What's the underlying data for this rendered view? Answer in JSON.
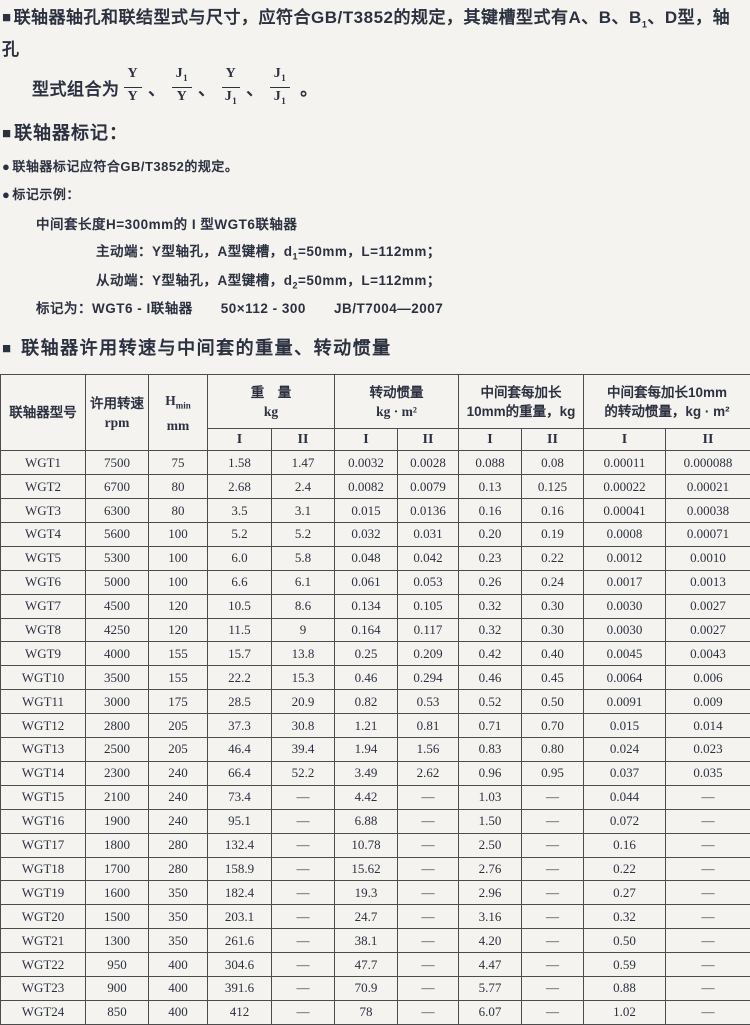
{
  "icons": {
    "square_bullet": "■",
    "dot_bullet": "●"
  },
  "intro": {
    "l1a": "联轴器轴孔和联结型式与尺寸，应符合GB/T3852的规定，其键槽型式有A、B、B",
    "l1sub": "1",
    "l1b": "、D型，轴孔",
    "l2prefix": "型式组合为",
    "separator": "、",
    "period": "。",
    "fracs": [
      {
        "top": "Y",
        "topSub": "",
        "bot": "Y",
        "botSub": ""
      },
      {
        "top": "J",
        "topSub": "1",
        "bot": "Y",
        "botSub": ""
      },
      {
        "top": "Y",
        "topSub": "",
        "bot": "J",
        "botSub": "1"
      },
      {
        "top": "J",
        "topSub": "1",
        "bot": "J",
        "botSub": "1"
      }
    ]
  },
  "marking": {
    "heading": "联轴器标记：",
    "bullet1": "联轴器标记应符合GB/T3852的规定。",
    "bullet2": "标记示例：",
    "example_line1": "中间套长度H=300mm的 I 型WGT6联轴器",
    "ex2a": "主动端：Y型轴孔，A型键槽，d",
    "ex2sub": "1",
    "ex2b": "=50mm，L=112mm；",
    "ex3a": "从动端：Y型轴孔，A型键槽，d",
    "ex3sub": "2",
    "ex3b": "=50mm，L=112mm；",
    "example_line4": "标记为：WGT6 - I联轴器　　50×112 - 300　　JB/T7004—2007"
  },
  "table_section": {
    "heading": "联轴器许用转速与中间套的重量、转动惯量"
  },
  "table": {
    "headers": {
      "model": "联轴器型号",
      "speed_line1": "许用转速",
      "speed_line2": "rpm",
      "h_main": "H",
      "h_sub": "min",
      "h_unit": "mm",
      "weight_line1": "重　量",
      "weight_line2": "kg",
      "inertia_line1": "转动惯量",
      "inertia_line2": "kg · m²",
      "ext_weight_line1": "中间套每加长",
      "ext_weight_line2": "10mm的重量，kg",
      "ext_inertia_line1": "中间套每加长10mm",
      "ext_inertia_line2": "的转动惯量，kg · m²",
      "col_I": "I",
      "col_II": "II"
    },
    "rows": [
      [
        "WGT1",
        "7500",
        "75",
        "1.58",
        "1.47",
        "0.0032",
        "0.0028",
        "0.088",
        "0.08",
        "0.00011",
        "0.000088"
      ],
      [
        "WGT2",
        "6700",
        "80",
        "2.68",
        "2.4",
        "0.0082",
        "0.0079",
        "0.13",
        "0.125",
        "0.00022",
        "0.00021"
      ],
      [
        "WGT3",
        "6300",
        "80",
        "3.5",
        "3.1",
        "0.015",
        "0.0136",
        "0.16",
        "0.16",
        "0.00041",
        "0.00038"
      ],
      [
        "WGT4",
        "5600",
        "100",
        "5.2",
        "5.2",
        "0.032",
        "0.031",
        "0.20",
        "0.19",
        "0.0008",
        "0.00071"
      ],
      [
        "WGT5",
        "5300",
        "100",
        "6.0",
        "5.8",
        "0.048",
        "0.042",
        "0.23",
        "0.22",
        "0.0012",
        "0.0010"
      ],
      [
        "WGT6",
        "5000",
        "100",
        "6.6",
        "6.1",
        "0.061",
        "0.053",
        "0.26",
        "0.24",
        "0.0017",
        "0.0013"
      ],
      [
        "WGT7",
        "4500",
        "120",
        "10.5",
        "8.6",
        "0.134",
        "0.105",
        "0.32",
        "0.30",
        "0.0030",
        "0.0027"
      ],
      [
        "WGT8",
        "4250",
        "120",
        "11.5",
        "9",
        "0.164",
        "0.117",
        "0.32",
        "0.30",
        "0.0030",
        "0.0027"
      ],
      [
        "WGT9",
        "4000",
        "155",
        "15.7",
        "13.8",
        "0.25",
        "0.209",
        "0.42",
        "0.40",
        "0.0045",
        "0.0043"
      ],
      [
        "WGT10",
        "3500",
        "155",
        "22.2",
        "15.3",
        "0.46",
        "0.294",
        "0.46",
        "0.45",
        "0.0064",
        "0.006"
      ],
      [
        "WGT11",
        "3000",
        "175",
        "28.5",
        "20.9",
        "0.82",
        "0.53",
        "0.52",
        "0.50",
        "0.0091",
        "0.009"
      ],
      [
        "WGT12",
        "2800",
        "205",
        "37.3",
        "30.8",
        "1.21",
        "0.81",
        "0.71",
        "0.70",
        "0.015",
        "0.014"
      ],
      [
        "WGT13",
        "2500",
        "205",
        "46.4",
        "39.4",
        "1.94",
        "1.56",
        "0.83",
        "0.80",
        "0.024",
        "0.023"
      ],
      [
        "WGT14",
        "2300",
        "240",
        "66.4",
        "52.2",
        "3.49",
        "2.62",
        "0.96",
        "0.95",
        "0.037",
        "0.035"
      ],
      [
        "WGT15",
        "2100",
        "240",
        "73.4",
        "—",
        "4.42",
        "—",
        "1.03",
        "—",
        "0.044",
        "—"
      ],
      [
        "WGT16",
        "1900",
        "240",
        "95.1",
        "—",
        "6.88",
        "—",
        "1.50",
        "—",
        "0.072",
        "—"
      ],
      [
        "WGT17",
        "1800",
        "280",
        "132.4",
        "—",
        "10.78",
        "—",
        "2.50",
        "—",
        "0.16",
        "—"
      ],
      [
        "WGT18",
        "1700",
        "280",
        "158.9",
        "—",
        "15.62",
        "—",
        "2.76",
        "—",
        "0.22",
        "—"
      ],
      [
        "WGT19",
        "1600",
        "350",
        "182.4",
        "—",
        "19.3",
        "—",
        "2.96",
        "—",
        "0.27",
        "—"
      ],
      [
        "WGT20",
        "1500",
        "350",
        "203.1",
        "—",
        "24.7",
        "—",
        "3.16",
        "—",
        "0.32",
        "—"
      ],
      [
        "WGT21",
        "1300",
        "350",
        "261.6",
        "—",
        "38.1",
        "—",
        "4.20",
        "—",
        "0.50",
        "—"
      ],
      [
        "WGT22",
        "950",
        "400",
        "304.6",
        "—",
        "47.7",
        "—",
        "4.47",
        "—",
        "0.59",
        "—"
      ],
      [
        "WGT23",
        "900",
        "400",
        "391.6",
        "—",
        "70.9",
        "—",
        "5.77",
        "—",
        "0.88",
        "—"
      ],
      [
        "WGT24",
        "850",
        "400",
        "412",
        "—",
        "78",
        "—",
        "6.07",
        "—",
        "1.02",
        "—"
      ]
    ]
  }
}
